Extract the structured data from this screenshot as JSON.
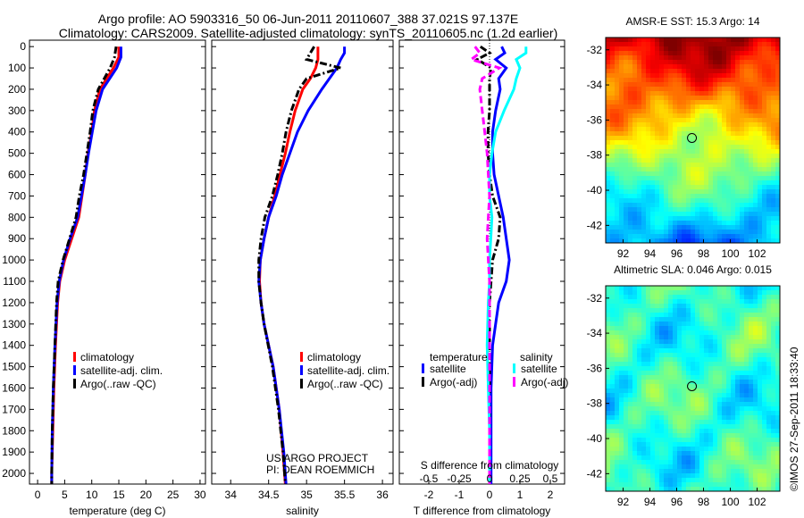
{
  "title": {
    "line1": "Argo profile: AO 5903316_50 06-Jun-2011 20110607_388 37.021S 97.137E",
    "line2": "Climatology: CARS2009. Satellite-adjusted climatology: synTS_20110605.nc (1.2d earlier)"
  },
  "depth_ticks": [
    "0",
    "100",
    "200",
    "300",
    "400",
    "500",
    "600",
    "700",
    "800",
    "900",
    "1000",
    "1100",
    "1200",
    "1300",
    "1400",
    "1500",
    "1600",
    "1700",
    "1800",
    "1900",
    "2000"
  ],
  "colors": {
    "clim": "#ff0000",
    "sat": "#0000ff",
    "argo": "#000000",
    "ssat": "#00ffff",
    "sargo": "#ff00ff"
  },
  "project": {
    "line1": "US ARGO PROJECT",
    "line2": "PI: DEAN ROEMMICH"
  },
  "stamp": "©IMOS 27-Sep-2011 18:33:40",
  "chart_data": [
    {
      "type": "line",
      "xlabel": "temperature (deg C)",
      "ylabel": "depth",
      "xlim": [
        -1.5,
        31
      ],
      "ylim": [
        2050,
        -30
      ],
      "xticks": [
        "0",
        "5",
        "10",
        "15",
        "20",
        "25",
        "30"
      ],
      "legend": [
        "climatology",
        "satellite-adj. clim.",
        "Argo(..raw -QC)"
      ],
      "depth": [
        0,
        50,
        100,
        200,
        300,
        400,
        500,
        600,
        700,
        800,
        900,
        1000,
        1100,
        1200,
        1400,
        1600,
        1800,
        2000,
        2050
      ],
      "series": [
        {
          "name": "climatology",
          "values": [
            15.0,
            15.0,
            14.0,
            11.5,
            10.5,
            10.0,
            9.3,
            8.8,
            8.2,
            7.6,
            6.3,
            5.0,
            4.1,
            3.7,
            3.3,
            3.0,
            2.8,
            2.6,
            2.6
          ]
        },
        {
          "name": "satellite-adj. clim.",
          "values": [
            15.4,
            15.4,
            14.6,
            12.0,
            10.8,
            10.1,
            9.4,
            8.8,
            8.1,
            7.4,
            6.0,
            4.8,
            4.0,
            3.6,
            3.2,
            2.9,
            2.7,
            2.6,
            2.6
          ]
        },
        {
          "name": "Argo(..raw -QC)",
          "values": [
            14.5,
            14.2,
            13.4,
            11.2,
            10.2,
            9.7,
            9.1,
            8.5,
            7.7,
            7.1,
            5.9,
            4.7,
            3.8,
            3.5,
            3.2,
            2.9,
            2.7,
            2.6,
            2.6
          ]
        }
      ]
    },
    {
      "type": "line",
      "xlabel": "salinity",
      "xlim": [
        33.75,
        36.14
      ],
      "ylim": [
        2050,
        -30
      ],
      "xticks": [
        "34",
        "34.5",
        "35",
        "35.5",
        "36"
      ],
      "legend": [
        "climatology",
        "satellite-adj. clim.",
        "Argo(..raw -QC)"
      ],
      "depth": [
        0,
        30,
        60,
        100,
        150,
        200,
        300,
        400,
        500,
        600,
        700,
        800,
        900,
        1000,
        1100,
        1200,
        1300,
        1500,
        1700,
        1900,
        2050
      ],
      "series": [
        {
          "name": "climatology",
          "values": [
            35.15,
            35.15,
            35.15,
            35.12,
            35.05,
            34.95,
            34.85,
            34.78,
            34.72,
            34.65,
            34.58,
            34.5,
            34.44,
            34.39,
            34.38,
            34.4,
            34.44,
            34.56,
            34.64,
            34.69,
            34.72
          ]
        },
        {
          "name": "satellite-adj. clim.",
          "values": [
            35.5,
            35.5,
            35.45,
            35.4,
            35.3,
            35.2,
            35.02,
            34.88,
            34.78,
            34.68,
            34.6,
            34.5,
            34.44,
            34.39,
            34.37,
            34.4,
            34.44,
            34.56,
            34.64,
            34.7,
            34.73
          ]
        },
        {
          "name": "Argo(..raw -QC)",
          "values": [
            35.1,
            35.05,
            35.0,
            35.45,
            35.0,
            34.9,
            34.8,
            34.73,
            34.68,
            34.62,
            34.55,
            34.45,
            34.4,
            34.37,
            34.37,
            34.4,
            34.44,
            34.55,
            34.63,
            34.69,
            34.72
          ]
        }
      ]
    },
    {
      "type": "line",
      "xlabel": "T difference from climatology",
      "x2label": "S difference from climatology",
      "xlim": [
        -2.97,
        2.47
      ],
      "ylim": [
        2050,
        -30
      ],
      "xticks": [
        "-2",
        "-1",
        "0",
        "1",
        "2"
      ],
      "x2ticks": [
        "-0.5",
        "-0.25",
        "0",
        "0.25",
        "0.5"
      ],
      "legend_temperature_title": "temperature",
      "legend_salinity_title": "salinity",
      "legend": [
        "satellite",
        "Argo(-adj)",
        "satellite",
        "Argo(-adj)"
      ],
      "depth": [
        0,
        30,
        60,
        100,
        150,
        200,
        300,
        400,
        500,
        600,
        700,
        800,
        900,
        1000,
        1100,
        1200,
        1400,
        1600,
        1800,
        2050
      ],
      "series": [
        {
          "name": "T satellite",
          "values": [
            0.4,
            0.5,
            0.2,
            0.55,
            0.3,
            0.35,
            0.2,
            0.1,
            0.1,
            0.15,
            0.3,
            0.45,
            0.55,
            0.65,
            0.55,
            0.3,
            0.1,
            0.05,
            0.05,
            0.05
          ]
        },
        {
          "name": "T Argo(-adj)",
          "values": [
            -0.3,
            0.0,
            -0.4,
            0.05,
            0.0,
            0.0,
            0.0,
            -0.05,
            -0.05,
            0.0,
            0.1,
            0.35,
            0.3,
            0.1,
            0.05,
            0.0,
            0.0,
            0.0,
            0.0,
            0.0
          ]
        },
        {
          "name": "S satellite",
          "values": [
            0.3,
            0.3,
            0.22,
            0.25,
            0.22,
            0.2,
            0.12,
            0.05,
            0.02,
            0.0,
            0.0,
            0.02,
            0.01,
            0.0,
            0.0,
            -0.01,
            -0.02,
            -0.01,
            0.0,
            0.0
          ]
        },
        {
          "name": "S Argo(-adj)",
          "values": [
            -0.12,
            -0.08,
            -0.15,
            0.08,
            -0.06,
            -0.08,
            -0.06,
            -0.04,
            -0.02,
            -0.01,
            0.0,
            -0.01,
            -0.02,
            -0.01,
            0.0,
            0.0,
            0.0,
            0.0,
            0.0,
            0.0
          ]
        }
      ]
    },
    {
      "type": "heatmap",
      "title": "AMSR-E SST: 15.3 Argo: 14",
      "xticks": [
        "92",
        "94",
        "96",
        "98",
        "100",
        "102"
      ],
      "yticks": [
        "-32",
        "-34",
        "-36",
        "-38",
        "-40",
        "-42"
      ],
      "marker": [
        97.137,
        -37.021
      ]
    },
    {
      "type": "heatmap",
      "title": "Altimetric SLA: 0.046 Argo: 0.015",
      "xticks": [
        "92",
        "94",
        "96",
        "98",
        "100",
        "102"
      ],
      "yticks": [
        "-32",
        "-34",
        "-36",
        "-38",
        "-40",
        "-42"
      ],
      "marker": [
        97.137,
        -37.021
      ]
    }
  ]
}
